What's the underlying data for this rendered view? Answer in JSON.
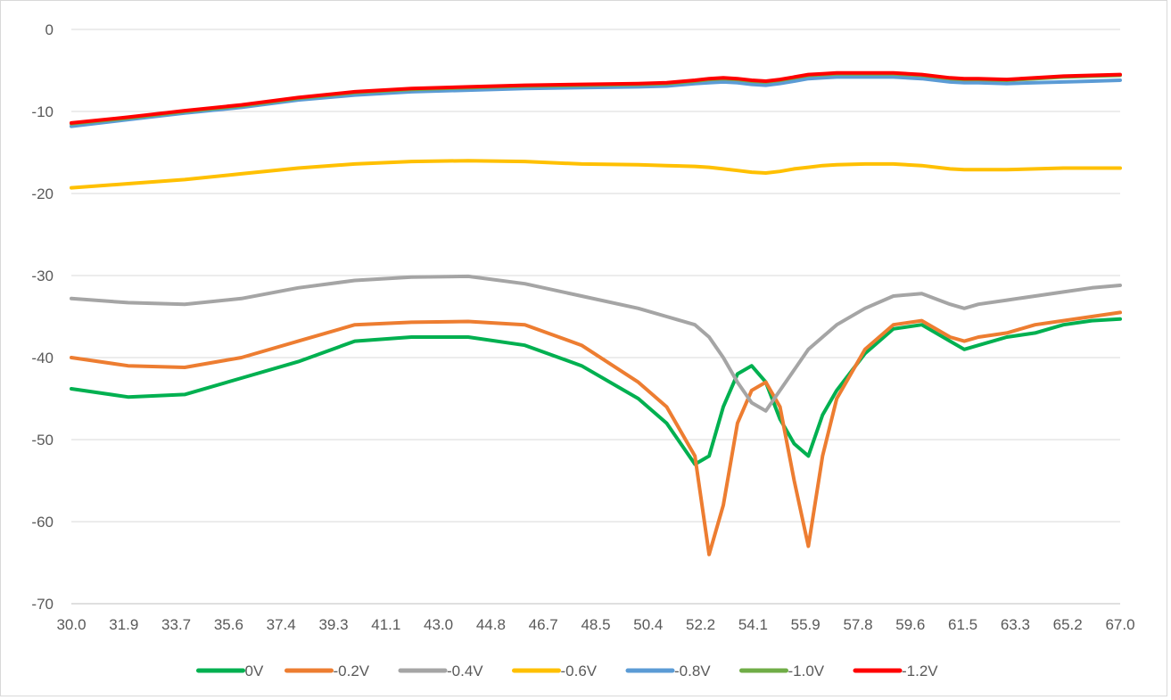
{
  "chart_data": {
    "type": "line",
    "title": "",
    "xlabel": "",
    "ylabel": "",
    "xlim": [
      30.0,
      67.0
    ],
    "ylim": [
      -70,
      0
    ],
    "x_tick_labels": [
      "30.0",
      "31.9",
      "33.7",
      "35.6",
      "37.4",
      "39.3",
      "41.1",
      "43.0",
      "44.8",
      "46.7",
      "48.5",
      "50.4",
      "52.2",
      "54.1",
      "55.9",
      "57.8",
      "59.6",
      "61.5",
      "63.3",
      "65.2",
      "67.0"
    ],
    "y_tick_labels": [
      "0",
      "-10",
      "-20",
      "-30",
      "-40",
      "-50",
      "-60",
      "-70"
    ],
    "y_ticks": [
      0,
      -10,
      -20,
      -30,
      -40,
      -50,
      -60,
      -70
    ],
    "grid": "horizontal",
    "legend_position": "bottom",
    "x": [
      30,
      32,
      34,
      36,
      38,
      40,
      42,
      44,
      46,
      48,
      50,
      51,
      52,
      52.5,
      53,
      53.5,
      54,
      54.5,
      55,
      55.5,
      56,
      56.5,
      57,
      58,
      59,
      60,
      61,
      61.5,
      62,
      63,
      64,
      65,
      66,
      67
    ],
    "series": [
      {
        "name": "0V",
        "color": "#00b050",
        "values": [
          -43.8,
          -44.8,
          -44.5,
          -42.5,
          -40.5,
          -38.0,
          -37.5,
          -37.5,
          -38.5,
          -41.0,
          -45.0,
          -48.0,
          -53.0,
          -52.0,
          -46.0,
          -42.0,
          -41.0,
          -43.0,
          -47.5,
          -50.5,
          -52.0,
          -47.0,
          -44.0,
          -39.5,
          -36.5,
          -36.0,
          -38.0,
          -39.0,
          -38.5,
          -37.5,
          -37.0,
          -36.0,
          -35.5,
          -35.3
        ]
      },
      {
        "name": "-0.2V",
        "color": "#ed7d31",
        "values": [
          -40.0,
          -41.0,
          -41.2,
          -40.0,
          -38.0,
          -36.0,
          -35.7,
          -35.6,
          -36.0,
          -38.5,
          -43.0,
          -46.0,
          -52.0,
          -64.0,
          -58.0,
          -48.0,
          -44.0,
          -43.0,
          -46.0,
          -55.0,
          -63.0,
          -52.0,
          -45.0,
          -39.0,
          -36.0,
          -35.5,
          -37.5,
          -38.0,
          -37.5,
          -37.0,
          -36.0,
          -35.5,
          -35.0,
          -34.5
        ]
      },
      {
        "name": "-0.4V",
        "color": "#a5a5a5",
        "values": [
          -32.8,
          -33.3,
          -33.5,
          -32.8,
          -31.5,
          -30.6,
          -30.2,
          -30.1,
          -31.0,
          -32.5,
          -34.0,
          -35.0,
          -36.0,
          -37.5,
          -40.0,
          -43.0,
          -45.5,
          -46.5,
          -44.0,
          -41.5,
          -39.0,
          -37.5,
          -36.0,
          -34.0,
          -32.5,
          -32.2,
          -33.5,
          -34.0,
          -33.5,
          -33.0,
          -32.5,
          -32.0,
          -31.5,
          -31.2
        ]
      },
      {
        "name": "-0.6V",
        "color": "#ffc000",
        "values": [
          -19.3,
          -18.8,
          -18.3,
          -17.6,
          -16.9,
          -16.4,
          -16.1,
          -16.0,
          -16.1,
          -16.4,
          -16.5,
          -16.6,
          -16.7,
          -16.8,
          -17.0,
          -17.2,
          -17.4,
          -17.5,
          -17.3,
          -17.0,
          -16.8,
          -16.6,
          -16.5,
          -16.4,
          -16.4,
          -16.6,
          -17.0,
          -17.1,
          -17.1,
          -17.1,
          -17.0,
          -16.9,
          -16.9,
          -16.9
        ]
      },
      {
        "name": "-0.8V",
        "color": "#5b9bd5",
        "values": [
          -11.8,
          -11.0,
          -10.2,
          -9.5,
          -8.6,
          -8.0,
          -7.6,
          -7.4,
          -7.2,
          -7.1,
          -7.0,
          -6.9,
          -6.6,
          -6.5,
          -6.4,
          -6.5,
          -6.7,
          -6.8,
          -6.6,
          -6.3,
          -6.0,
          -5.9,
          -5.8,
          -5.8,
          -5.8,
          -6.0,
          -6.4,
          -6.5,
          -6.5,
          -6.6,
          -6.5,
          -6.4,
          -6.3,
          -6.2
        ]
      },
      {
        "name": "-1.0V",
        "color": "#70ad47",
        "values": [
          -11.5,
          -10.8,
          -10.0,
          -9.3,
          -8.4,
          -7.7,
          -7.3,
          -7.1,
          -6.9,
          -6.8,
          -6.7,
          -6.6,
          -6.3,
          -6.1,
          -6.0,
          -6.1,
          -6.3,
          -6.4,
          -6.2,
          -5.9,
          -5.6,
          -5.5,
          -5.4,
          -5.4,
          -5.4,
          -5.6,
          -6.0,
          -6.1,
          -6.1,
          -6.2,
          -6.0,
          -5.8,
          -5.7,
          -5.6
        ]
      },
      {
        "name": "-1.2V",
        "color": "#ff0000",
        "values": [
          -11.4,
          -10.7,
          -9.9,
          -9.2,
          -8.3,
          -7.6,
          -7.2,
          -7.0,
          -6.8,
          -6.7,
          -6.6,
          -6.5,
          -6.2,
          -6.0,
          -5.9,
          -6.0,
          -6.2,
          -6.3,
          -6.1,
          -5.8,
          -5.5,
          -5.4,
          -5.3,
          -5.3,
          -5.3,
          -5.5,
          -5.9,
          -6.0,
          -6.0,
          -6.1,
          -5.9,
          -5.7,
          -5.6,
          -5.5
        ]
      }
    ]
  }
}
